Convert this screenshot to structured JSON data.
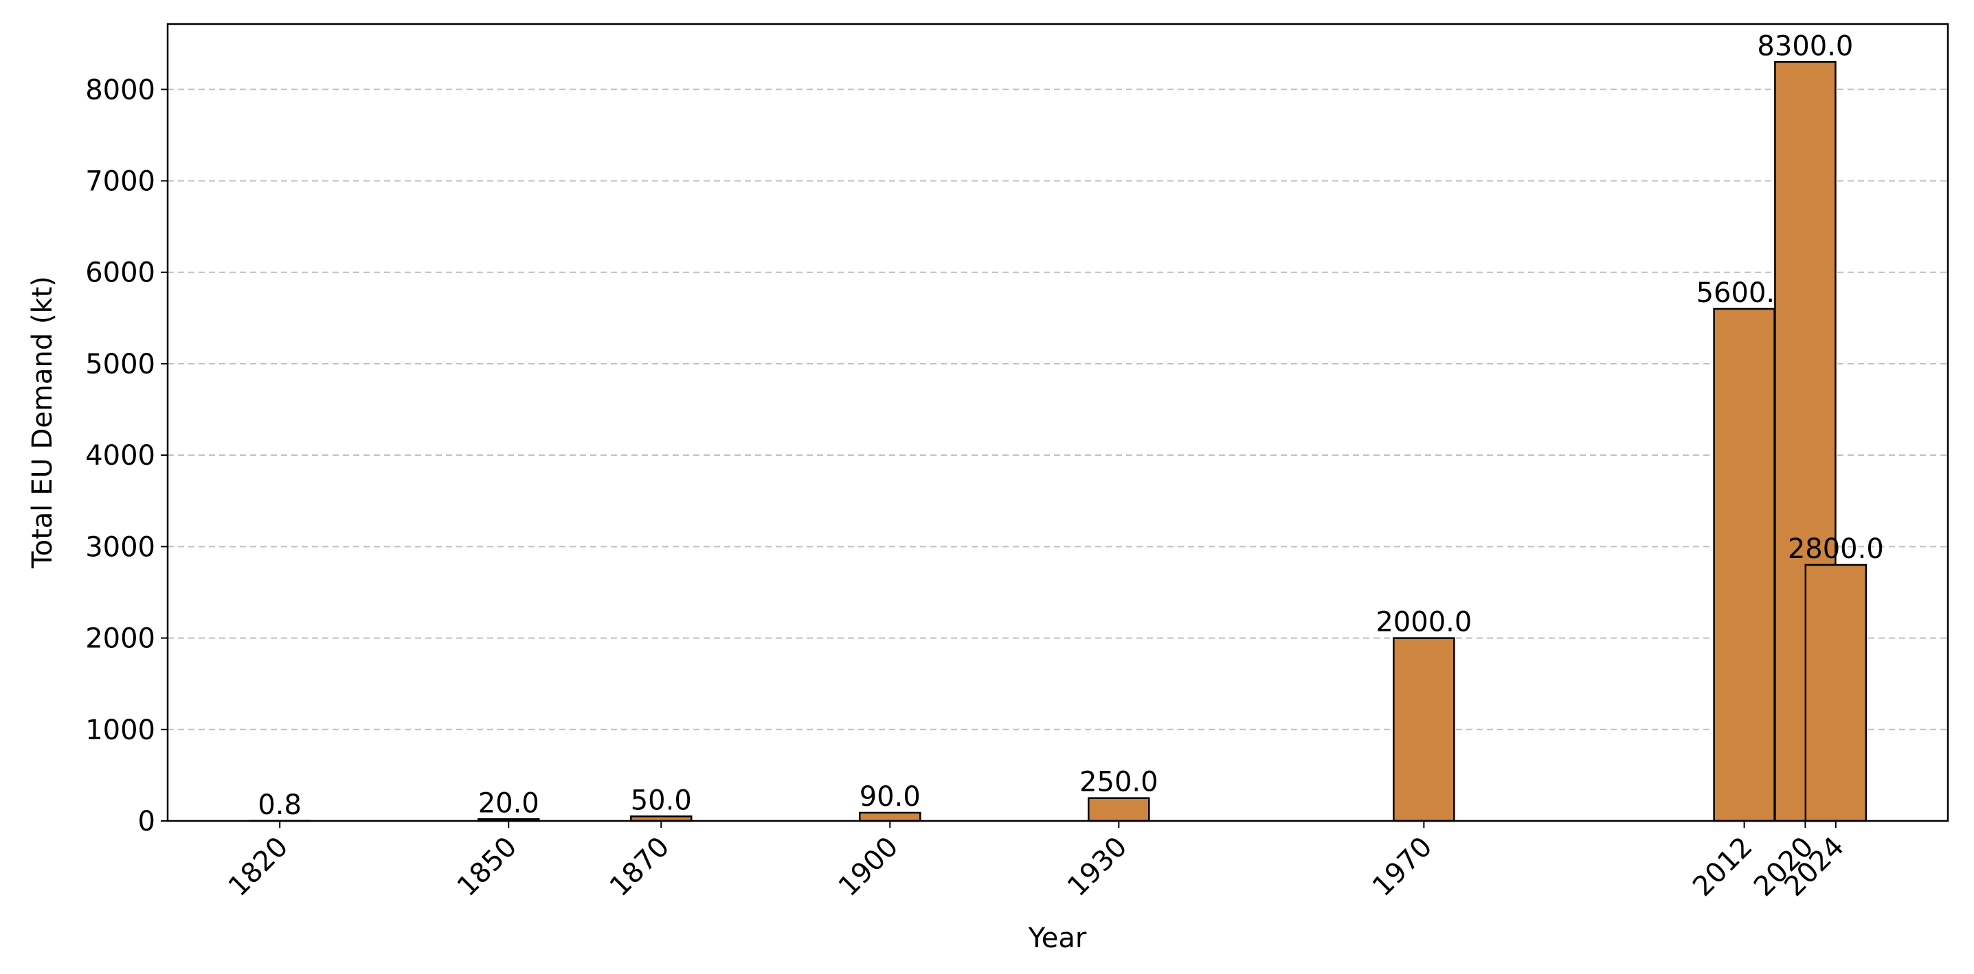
{
  "chart_data": {
    "type": "bar",
    "x_label": "Year",
    "y_label": "Total EU Demand (kt)",
    "x": [
      1820,
      1850,
      1870,
      1900,
      1930,
      1970,
      2012,
      2020,
      2024
    ],
    "values": [
      0.8,
      20,
      50,
      90,
      250,
      2000,
      5600,
      8300,
      2800
    ],
    "value_labels": [
      "0.8",
      "20.0",
      "50.0",
      "90.0",
      "250.0",
      "2000.0",
      "5600.0",
      "8300.0",
      "2800.0"
    ],
    "color": "#cd853f",
    "xlim": [
      1805.3,
      2038.7
    ],
    "xticks": [
      1820,
      1850,
      1870,
      1900,
      1930,
      1970,
      2012,
      2020,
      2024
    ],
    "ylim": [
      0,
      8715
    ],
    "yticks": [
      0,
      1000,
      2000,
      3000,
      4000,
      5000,
      6000,
      7000,
      8000
    ],
    "grid": true
  }
}
